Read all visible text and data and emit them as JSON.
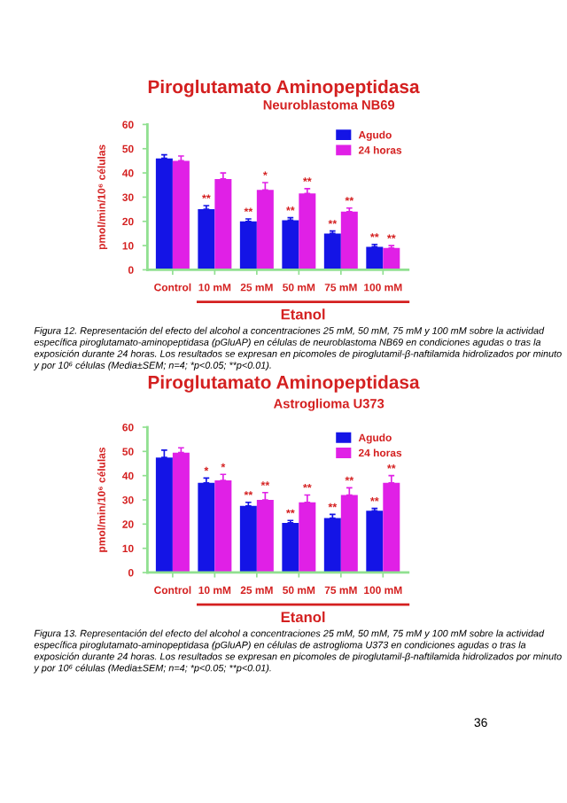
{
  "chart_data": [
    {
      "type": "bar",
      "title": "Piroglutamato Aminopeptidasa",
      "subtitle": "Neuroblastoma NB69",
      "ylabel": "pmol/min/10⁶ células",
      "xlabel": "Etanol",
      "categories": [
        "Control",
        "10 mM",
        "25 mM",
        "50 mM",
        "75 mM",
        "100 mM"
      ],
      "series": [
        {
          "name": "Agudo",
          "color": "#1414e6",
          "values": [
            46,
            25,
            20,
            20.5,
            15,
            9.5
          ],
          "errors": [
            1.5,
            1.5,
            1,
            1,
            1,
            1
          ],
          "value_labels": [
            null,
            "**",
            "**",
            "**",
            "**",
            "**"
          ]
        },
        {
          "name": "24 horas",
          "color": "#e020e6",
          "values": [
            45,
            37.5,
            33,
            31.5,
            24,
            9
          ],
          "errors": [
            2,
            2.5,
            3,
            2,
            1.5,
            1
          ],
          "value_labels": [
            null,
            null,
            "*",
            "**",
            "**",
            "**"
          ]
        }
      ],
      "ylim": [
        0,
        60
      ],
      "yticks": [
        0,
        10,
        20,
        30,
        40,
        50,
        60
      ],
      "grid": false,
      "legend": "top right",
      "annotations": [
        "Figura 12. Representación del efecto del alcohol a concentraciones 25 mM, 50 mM, 75 mM y 100 mM sobre la actividad específica piroglutamato-aminopeptidasa (pGluAP) en células de neuroblastoma NB69 en condiciones agudas o tras la exposición durante 24 horas. Los resultados se expresan en picomoles de piroglutamil-β-naftilamida hidrolizados por minuto y por 10⁶ células (Media±SEM; n=4; *p<0.05; **p<0.01)."
      ]
    },
    {
      "type": "bar",
      "title": "Piroglutamato Aminopeptidasa",
      "subtitle": "Astroglioma U373",
      "ylabel": "pmol/min/10⁶ células",
      "xlabel": "Etanol",
      "categories": [
        "Control",
        "10 mM",
        "25 mM",
        "50 mM",
        "75 mM",
        "100 mM"
      ],
      "series": [
        {
          "name": "Agudo",
          "color": "#1414e6",
          "values": [
            47.5,
            37,
            27.5,
            20.5,
            22.5,
            25.5
          ],
          "errors": [
            3,
            2,
            1.5,
            1,
            1.5,
            1
          ],
          "value_labels": [
            null,
            "*",
            "**",
            "**",
            "**",
            "**"
          ]
        },
        {
          "name": "24 horas",
          "color": "#e020e6",
          "values": [
            49.5,
            38,
            30,
            29,
            32,
            37
          ],
          "errors": [
            2,
            2.5,
            3,
            3,
            3,
            3
          ],
          "value_labels": [
            null,
            "*",
            "**",
            "**",
            "**",
            "**"
          ]
        }
      ],
      "ylim": [
        0,
        60
      ],
      "yticks": [
        0,
        10,
        20,
        30,
        40,
        50,
        60
      ],
      "grid": false,
      "legend": "top right",
      "annotations": [
        "Figura 13. Representación del efecto del alcohol a concentraciones 25 mM, 50 mM, 75 mM y 100 mM sobre la actividad específica piroglutamato-aminopeptidasa (pGluAP) en células de astroglioma U373 en condiciones agudas o tras la exposición durante 24 horas. Los resultados se expresan en picomoles de piroglutamil-β-naftilamida hidrolizados por minuto y por 10⁶ células (Media±SEM; n=4; *p<0.05; **p<0.01).",
        "36"
      ]
    }
  ]
}
